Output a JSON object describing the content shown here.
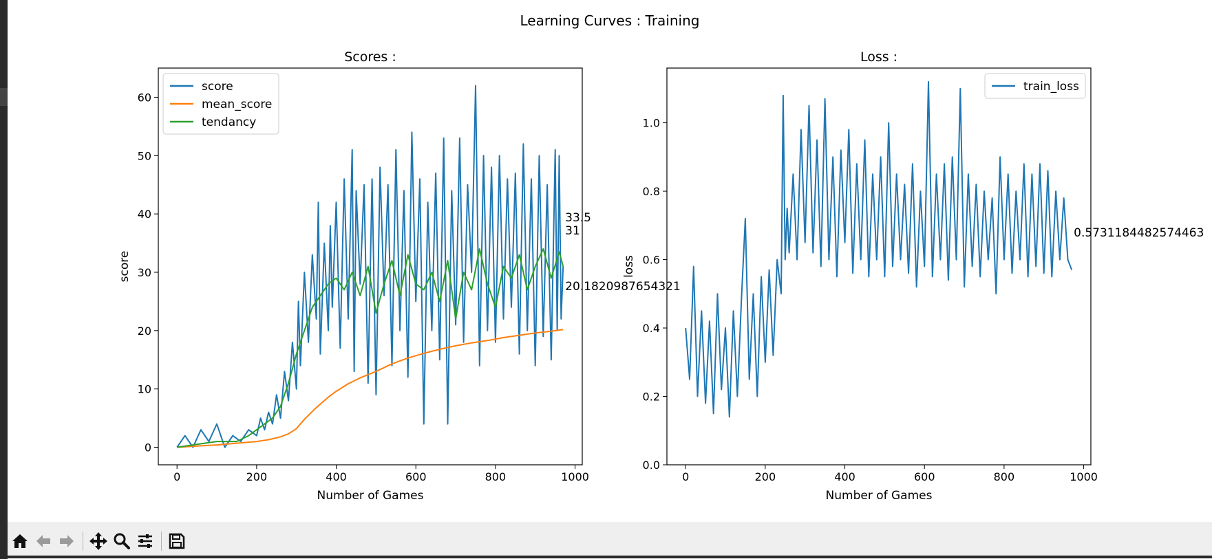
{
  "figure_title": "Learning Curves : Training",
  "colors": {
    "score": "#1f77b4",
    "mean_score": "#ff7f0e",
    "tendancy": "#2ca02c",
    "train_loss": "#1f77b4"
  },
  "toolbar": {
    "items": [
      {
        "name": "home-button",
        "icon": "home-icon"
      },
      {
        "name": "back-button",
        "icon": "arrow-left-icon"
      },
      {
        "name": "forward-button",
        "icon": "arrow-right-icon"
      },
      {
        "name": "pan-button",
        "icon": "move-icon"
      },
      {
        "name": "zoom-button",
        "icon": "magnifier-icon"
      },
      {
        "name": "configure-subplots-button",
        "icon": "sliders-icon"
      },
      {
        "name": "save-button",
        "icon": "save-icon"
      }
    ]
  },
  "chart_data": [
    {
      "type": "line",
      "title": "Scores :",
      "xlabel": "Number of Games",
      "ylabel": "score",
      "xlim": [
        -47,
        1018
      ],
      "ylim": [
        -3,
        65
      ],
      "xticks": [
        0,
        200,
        400,
        600,
        800,
        1000
      ],
      "yticks": [
        0,
        10,
        20,
        30,
        40,
        50,
        60
      ],
      "legend": "upper-left",
      "series": [
        {
          "name": "score",
          "color": "#1f77b4",
          "x": [
            0,
            20,
            40,
            60,
            80,
            100,
            120,
            140,
            160,
            180,
            200,
            210,
            220,
            230,
            240,
            250,
            260,
            270,
            280,
            290,
            300,
            305,
            310,
            320,
            330,
            340,
            350,
            355,
            360,
            370,
            380,
            385,
            390,
            400,
            410,
            420,
            430,
            440,
            445,
            450,
            460,
            470,
            480,
            490,
            500,
            510,
            520,
            530,
            540,
            550,
            560,
            570,
            580,
            590,
            600,
            610,
            620,
            630,
            640,
            650,
            660,
            670,
            680,
            690,
            700,
            710,
            720,
            730,
            740,
            750,
            760,
            770,
            780,
            790,
            800,
            810,
            820,
            830,
            840,
            850,
            860,
            870,
            880,
            890,
            900,
            910,
            920,
            930,
            940,
            950,
            955,
            960,
            965,
            970
          ],
          "y": [
            0,
            2,
            0,
            3,
            1,
            4,
            0,
            2,
            1,
            3,
            2,
            5,
            3,
            6,
            4,
            9,
            5,
            13,
            8,
            18,
            10,
            25,
            14,
            30,
            18,
            33,
            22,
            42,
            16,
            35,
            20,
            38,
            24,
            42,
            17,
            46,
            22,
            51,
            13,
            44,
            28,
            45,
            11,
            46,
            9,
            48,
            26,
            45,
            14,
            51,
            20,
            44,
            12,
            54,
            25,
            46,
            4,
            42,
            20,
            47,
            15,
            53,
            4,
            44,
            21,
            53,
            18,
            45,
            30,
            62,
            14,
            50,
            20,
            48,
            18,
            50,
            22,
            46,
            24,
            47,
            16,
            52,
            20,
            46,
            14,
            50,
            19,
            45,
            15,
            51,
            20,
            50,
            22,
            31
          ]
        },
        {
          "name": "mean_score",
          "color": "#ff7f0e",
          "x": [
            0,
            50,
            100,
            150,
            200,
            230,
            260,
            280,
            300,
            320,
            350,
            380,
            400,
            430,
            460,
            500,
            540,
            580,
            620,
            660,
            700,
            740,
            780,
            820,
            860,
            900,
            940,
            970
          ],
          "y": [
            0,
            0.2,
            0.4,
            0.7,
            1.0,
            1.3,
            1.8,
            2.3,
            3.2,
            4.8,
            6.8,
            8.6,
            9.6,
            10.9,
            11.9,
            13.0,
            14.3,
            15.3,
            16.1,
            16.8,
            17.4,
            17.9,
            18.3,
            18.8,
            19.2,
            19.6,
            19.9,
            20.18
          ]
        },
        {
          "name": "tendancy",
          "color": "#2ca02c",
          "x": [
            0,
            50,
            100,
            150,
            180,
            200,
            220,
            240,
            260,
            280,
            300,
            320,
            340,
            360,
            380,
            400,
            420,
            440,
            460,
            480,
            500,
            520,
            540,
            560,
            580,
            600,
            620,
            640,
            660,
            680,
            700,
            720,
            740,
            760,
            780,
            800,
            820,
            840,
            860,
            880,
            900,
            920,
            940,
            960,
            970
          ],
          "y": [
            0,
            0.5,
            1,
            1,
            2,
            3,
            4,
            5,
            7,
            11,
            16,
            20,
            24,
            26,
            28,
            29,
            27,
            30,
            26,
            31,
            23,
            28,
            32,
            26,
            33,
            28,
            27,
            30,
            25,
            32,
            22,
            30,
            27,
            34,
            28,
            24,
            31,
            29,
            33,
            27,
            31,
            34,
            29,
            33.5,
            31
          ]
        }
      ],
      "annotations": [
        "33.5",
        "31",
        "20.1820987654321"
      ]
    },
    {
      "type": "line",
      "title": "Loss :",
      "xlabel": "Number of Games",
      "ylabel": "loss",
      "xlim": [
        -47,
        1018
      ],
      "ylim": [
        0,
        1.16
      ],
      "xticks": [
        0,
        200,
        400,
        600,
        800,
        1000
      ],
      "yticks": [
        0.0,
        0.2,
        0.4,
        0.6,
        0.8,
        1.0
      ],
      "legend": "upper-right",
      "series": [
        {
          "name": "train_loss",
          "color": "#1f77b4",
          "x": [
            0,
            10,
            20,
            30,
            40,
            50,
            60,
            70,
            80,
            90,
            100,
            110,
            120,
            130,
            140,
            150,
            160,
            170,
            180,
            190,
            200,
            210,
            220,
            230,
            240,
            245,
            250,
            255,
            260,
            270,
            280,
            290,
            300,
            310,
            320,
            330,
            340,
            350,
            360,
            370,
            380,
            390,
            400,
            410,
            420,
            430,
            440,
            450,
            460,
            470,
            480,
            490,
            500,
            510,
            520,
            530,
            540,
            550,
            560,
            570,
            580,
            590,
            600,
            610,
            620,
            630,
            640,
            650,
            660,
            670,
            680,
            690,
            700,
            710,
            720,
            730,
            740,
            750,
            760,
            770,
            780,
            790,
            800,
            810,
            820,
            830,
            840,
            850,
            860,
            870,
            880,
            890,
            900,
            910,
            920,
            930,
            940,
            950,
            960,
            970
          ],
          "y": [
            0.4,
            0.25,
            0.58,
            0.2,
            0.45,
            0.18,
            0.42,
            0.15,
            0.5,
            0.22,
            0.4,
            0.14,
            0.45,
            0.2,
            0.48,
            0.72,
            0.25,
            0.5,
            0.2,
            0.55,
            0.3,
            0.57,
            0.32,
            0.6,
            0.5,
            1.08,
            0.6,
            0.75,
            0.62,
            0.85,
            0.6,
            0.98,
            0.65,
            1.05,
            0.62,
            0.95,
            0.58,
            1.07,
            0.6,
            0.9,
            0.55,
            0.92,
            0.65,
            0.98,
            0.56,
            0.88,
            0.6,
            0.95,
            0.55,
            0.85,
            0.6,
            0.9,
            0.55,
            1.0,
            0.58,
            0.85,
            0.6,
            0.82,
            0.56,
            0.88,
            0.52,
            0.8,
            0.58,
            1.12,
            0.55,
            0.85,
            0.6,
            0.88,
            0.54,
            0.9,
            0.6,
            1.1,
            0.52,
            0.85,
            0.58,
            0.82,
            0.55,
            0.8,
            0.6,
            0.78,
            0.5,
            0.9,
            0.6,
            0.85,
            0.56,
            0.8,
            0.6,
            0.88,
            0.55,
            0.85,
            0.58,
            0.88,
            0.56,
            0.86,
            0.55,
            0.8,
            0.6,
            0.78,
            0.6,
            0.57
          ]
        }
      ],
      "annotations": [
        "0.5731184482574463"
      ]
    }
  ]
}
